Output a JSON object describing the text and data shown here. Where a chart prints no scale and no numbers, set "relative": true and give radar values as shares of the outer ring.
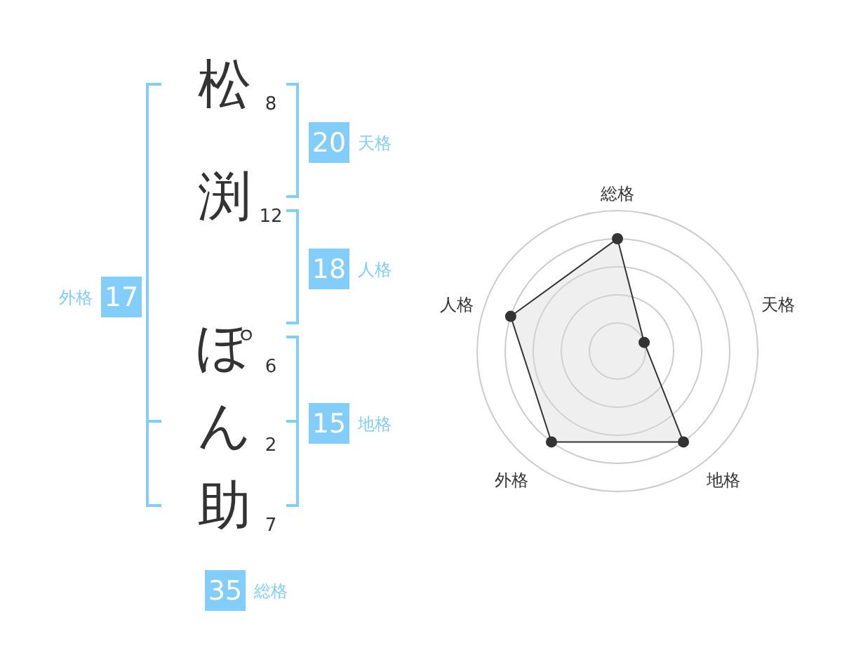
{
  "chart_data": [
    {
      "type": "other",
      "categories": [
        "松",
        "渕",
        "ぽ",
        "ん",
        "助"
      ],
      "values": [
        8,
        12,
        6,
        2,
        7
      ],
      "data_labels": true,
      "color": "#82cdf9",
      "annotations": [
        "20",
        "天格",
        "18",
        "人格",
        "15",
        "地格",
        "17",
        "外格",
        "35",
        "総格"
      ]
    },
    {
      "type": "radar",
      "relative": true,
      "categories": [
        "総格",
        "天格",
        "地格",
        "外格",
        "人格"
      ],
      "grid": true,
      "marker": "circle",
      "series": [
        {
          "color": "#333333",
          "values": [
            0.8,
            0.2,
            0.8,
            0.8,
            0.8
          ]
        }
      ]
    }
  ]
}
